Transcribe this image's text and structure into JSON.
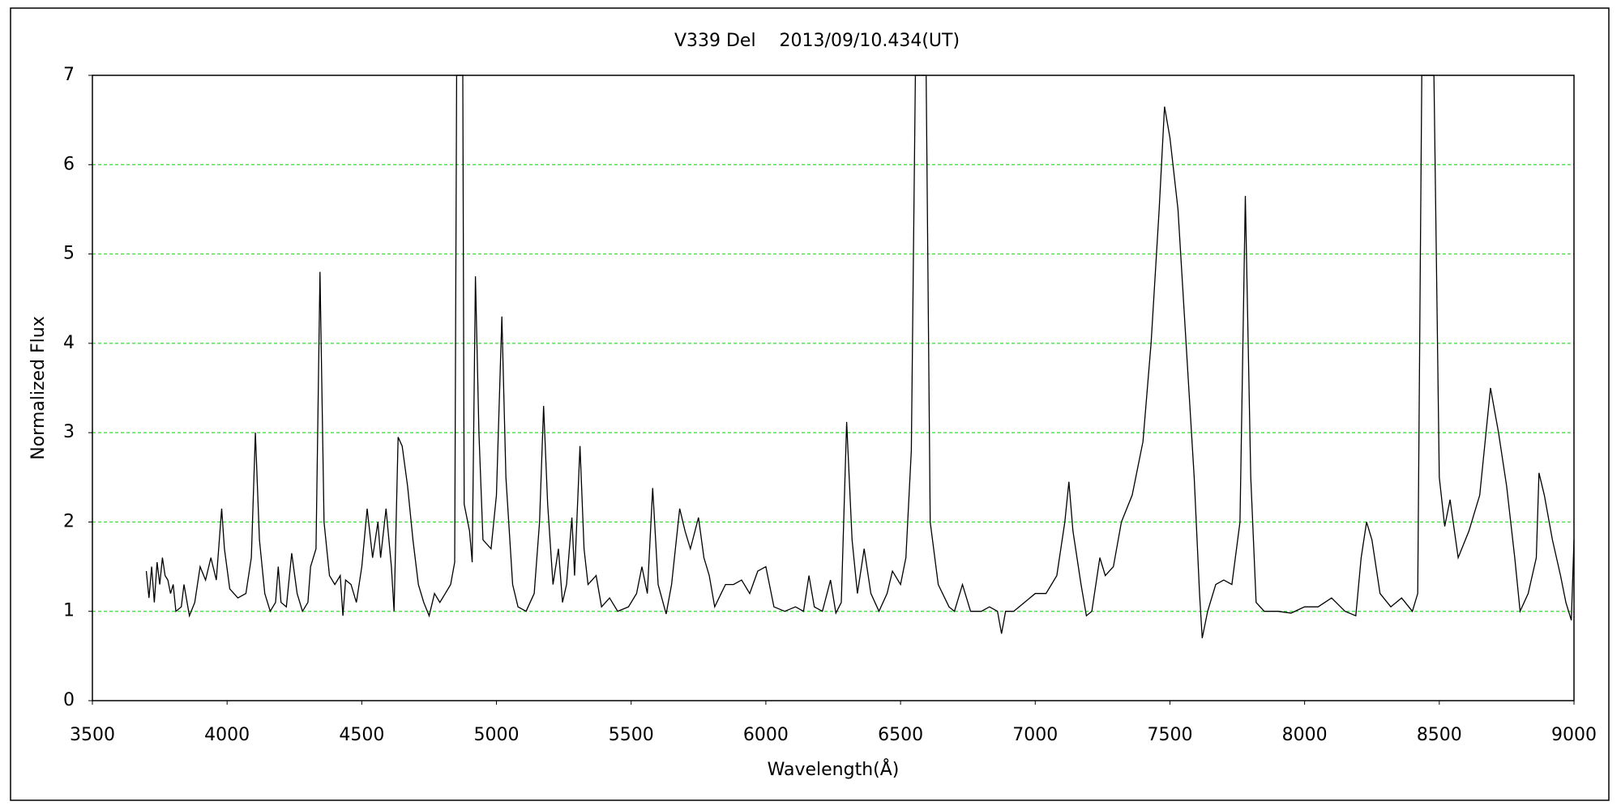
{
  "chart_data": {
    "type": "line",
    "title": "V339 Del　 2013/09/10.434(UT)",
    "x_label": "Wavelength(Å)",
    "y_label": "Normalized Flux",
    "color": "#000000",
    "grid": true,
    "grid_color": "#33dd33",
    "xlim": [
      3500,
      9000
    ],
    "xticks": [
      3500,
      4000,
      4500,
      5000,
      5500,
      6000,
      6500,
      7000,
      7500,
      8000,
      8500,
      9000
    ],
    "ylim": [
      0,
      7
    ],
    "yticks": [
      0,
      1,
      2,
      3,
      4,
      5,
      6,
      7
    ],
    "x": [
      3700,
      3710,
      3720,
      3730,
      3740,
      3750,
      3760,
      3770,
      3780,
      3790,
      3800,
      3810,
      3830,
      3840,
      3860,
      3880,
      3900,
      3920,
      3940,
      3960,
      3980,
      3990,
      4010,
      4040,
      4070,
      4090,
      4105,
      4120,
      4140,
      4160,
      4180,
      4190,
      4200,
      4220,
      4240,
      4260,
      4280,
      4300,
      4310,
      4330,
      4345,
      4360,
      4380,
      4400,
      4420,
      4430,
      4440,
      4460,
      4480,
      4500,
      4520,
      4540,
      4560,
      4570,
      4590,
      4610,
      4620,
      4635,
      4650,
      4670,
      4690,
      4710,
      4730,
      4750,
      4770,
      4790,
      4810,
      4830,
      4845,
      4852,
      4875,
      4880,
      4900,
      4910,
      4922,
      4935,
      4950,
      4980,
      5000,
      5020,
      5035,
      5060,
      5080,
      5110,
      5140,
      5160,
      5175,
      5190,
      5210,
      5230,
      5245,
      5260,
      5280,
      5290,
      5310,
      5325,
      5340,
      5370,
      5390,
      5420,
      5450,
      5490,
      5520,
      5540,
      5560,
      5580,
      5600,
      5630,
      5650,
      5680,
      5700,
      5720,
      5750,
      5770,
      5790,
      5810,
      5850,
      5880,
      5910,
      5940,
      5970,
      6000,
      6030,
      6070,
      6110,
      6140,
      6160,
      6180,
      6210,
      6240,
      6260,
      6280,
      6300,
      6320,
      6340,
      6365,
      6390,
      6420,
      6450,
      6470,
      6500,
      6520,
      6540,
      6555,
      6595,
      6610,
      6640,
      6680,
      6700,
      6730,
      6760,
      6800,
      6830,
      6860,
      6875,
      6890,
      6920,
      6960,
      7000,
      7040,
      7080,
      7110,
      7125,
      7140,
      7170,
      7190,
      7210,
      7240,
      7260,
      7290,
      7320,
      7360,
      7400,
      7430,
      7460,
      7480,
      7500,
      7530,
      7560,
      7590,
      7610,
      7620,
      7640,
      7670,
      7700,
      7730,
      7760,
      7780,
      7800,
      7820,
      7850,
      7900,
      7950,
      8000,
      8050,
      8100,
      8150,
      8190,
      8210,
      8230,
      8250,
      8280,
      8320,
      8360,
      8400,
      8420,
      8435,
      8480,
      8500,
      8520,
      8540,
      8570,
      8610,
      8650,
      8690,
      8720,
      8750,
      8780,
      8800,
      8830,
      8860,
      8870,
      8890,
      8920,
      8950,
      8970,
      8990,
      9000
    ],
    "values": [
      1.45,
      1.15,
      1.5,
      1.1,
      1.55,
      1.3,
      1.6,
      1.4,
      1.35,
      1.2,
      1.3,
      1.0,
      1.05,
      1.3,
      0.95,
      1.1,
      1.5,
      1.35,
      1.6,
      1.35,
      2.15,
      1.7,
      1.25,
      1.15,
      1.2,
      1.6,
      3.0,
      1.8,
      1.2,
      1.0,
      1.1,
      1.5,
      1.1,
      1.05,
      1.65,
      1.2,
      1.0,
      1.1,
      1.5,
      1.7,
      4.8,
      2.0,
      1.4,
      1.3,
      1.4,
      0.95,
      1.35,
      1.3,
      1.1,
      1.5,
      2.15,
      1.6,
      2.0,
      1.6,
      2.15,
      1.5,
      1.0,
      2.95,
      2.85,
      2.4,
      1.8,
      1.3,
      1.1,
      0.95,
      1.2,
      1.1,
      1.2,
      1.3,
      1.55,
      7,
      7,
      2.2,
      1.9,
      1.55,
      4.75,
      3.0,
      1.8,
      1.7,
      2.3,
      4.3,
      2.5,
      1.3,
      1.05,
      1.0,
      1.2,
      2.0,
      3.3,
      2.2,
      1.3,
      1.7,
      1.1,
      1.3,
      2.05,
      1.4,
      2.85,
      1.7,
      1.3,
      1.4,
      1.05,
      1.15,
      1.0,
      1.05,
      1.2,
      1.5,
      1.2,
      2.38,
      1.3,
      0.97,
      1.3,
      2.15,
      1.9,
      1.7,
      2.05,
      1.6,
      1.4,
      1.05,
      1.3,
      1.3,
      1.35,
      1.2,
      1.45,
      1.5,
      1.05,
      1.0,
      1.05,
      1.0,
      1.4,
      1.05,
      1.0,
      1.35,
      0.98,
      1.1,
      3.12,
      1.8,
      1.2,
      1.7,
      1.2,
      1.0,
      1.2,
      1.45,
      1.3,
      1.6,
      2.8,
      7,
      7,
      2.0,
      1.3,
      1.05,
      1.0,
      1.3,
      1.0,
      1.0,
      1.05,
      1.0,
      0.75,
      1.0,
      1.0,
      1.1,
      1.2,
      1.2,
      1.4,
      2.0,
      2.45,
      1.9,
      1.3,
      0.95,
      1.0,
      1.6,
      1.4,
      1.5,
      2.0,
      2.3,
      2.9,
      4.0,
      5.5,
      6.65,
      6.3,
      5.5,
      4.0,
      2.5,
      1.2,
      0.7,
      1.0,
      1.3,
      1.35,
      1.3,
      2.0,
      5.65,
      2.5,
      1.1,
      1.0,
      1.0,
      0.98,
      1.05,
      1.05,
      1.15,
      1.0,
      0.95,
      1.6,
      2.0,
      1.8,
      1.2,
      1.05,
      1.15,
      1.0,
      1.2,
      7,
      7,
      2.5,
      1.95,
      2.25,
      1.6,
      1.9,
      2.3,
      3.5,
      3.0,
      2.4,
      1.6,
      1.0,
      1.2,
      1.6,
      2.55,
      2.3,
      1.8,
      1.4,
      1.1,
      0.9,
      1.8
    ]
  }
}
